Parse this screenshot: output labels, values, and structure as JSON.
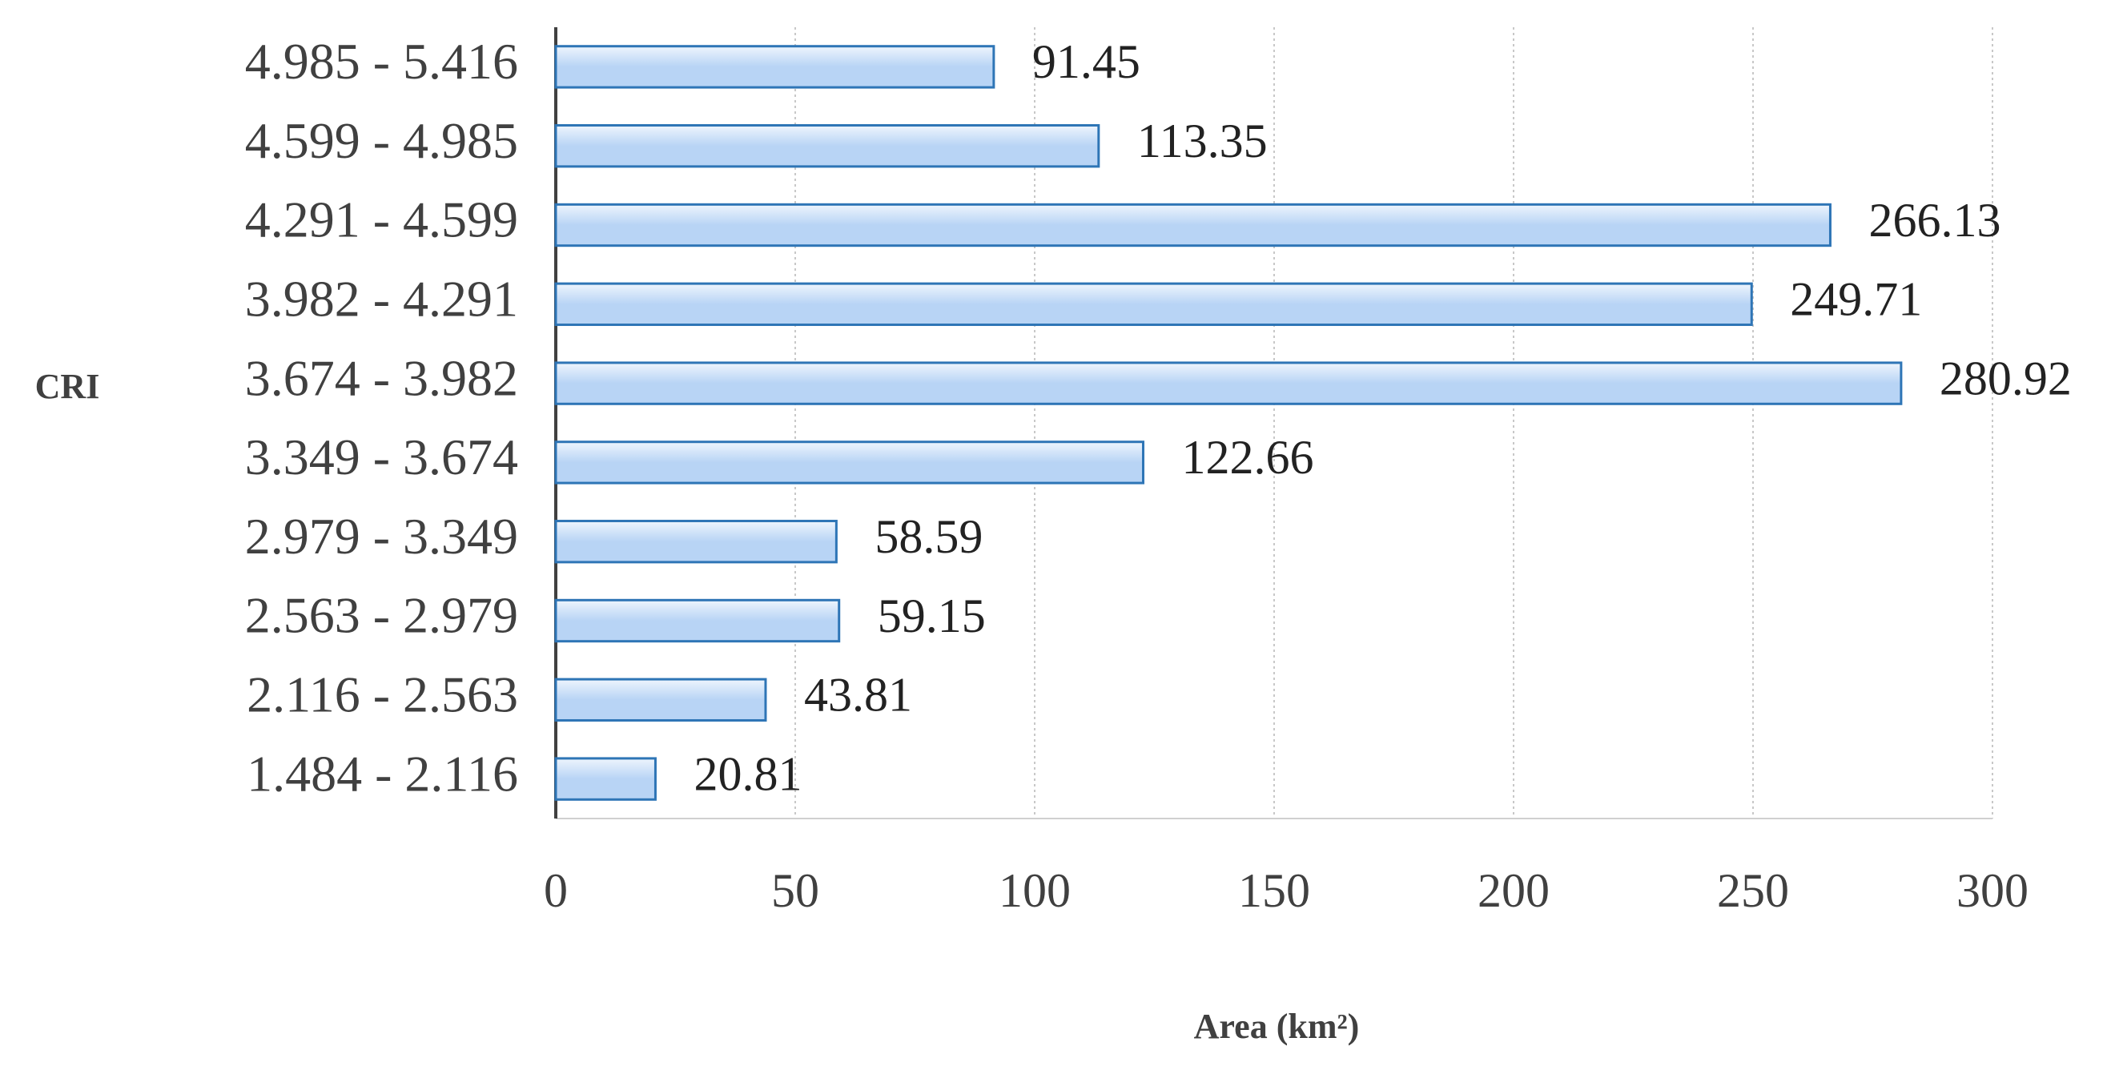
{
  "chart_data": {
    "type": "bar",
    "orientation": "horizontal",
    "categories": [
      "4.985 - 5.416",
      "4.599 - 4.985",
      "4.291 - 4.599",
      "3.982 - 4.291",
      "3.674 - 3.982",
      "3.349 - 3.674",
      "2.979 - 3.349",
      "2.563 - 2.979",
      "2.116 - 2.563",
      "1.484 - 2.116"
    ],
    "values": [
      91.45,
      113.35,
      266.13,
      249.71,
      280.92,
      122.66,
      58.59,
      59.15,
      43.81,
      20.81
    ],
    "color": "#b8d4f5",
    "edge_color": "#2e75b6",
    "xlim": [
      0,
      300
    ],
    "xticks": [
      0,
      50,
      100,
      150,
      200,
      250,
      300
    ],
    "grid": true,
    "xlabel": "Area (km²)",
    "ylabel": "CRI"
  }
}
